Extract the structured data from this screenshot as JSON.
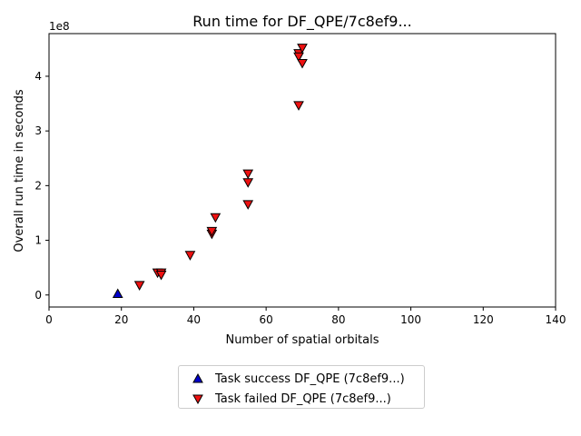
{
  "chart_data": {
    "type": "scatter",
    "title": "Run time for DF_QPE/7c8ef9...",
    "xlabel": "Number of spatial orbitals",
    "ylabel": "Overall run time in seconds",
    "offset_label": "1e8",
    "xlim": [
      0,
      140
    ],
    "ylim": [
      -0.22,
      4.78
    ],
    "y_scale_note": "values in units of 1e8 seconds",
    "xticks": [
      "0",
      "20",
      "40",
      "60",
      "80",
      "100",
      "120",
      "140"
    ],
    "xtick_values": [
      0,
      20,
      40,
      60,
      80,
      100,
      120,
      140
    ],
    "yticks": [
      "0",
      "1",
      "2",
      "3",
      "4"
    ],
    "ytick_values": [
      0,
      1,
      2,
      3,
      4
    ],
    "grid": false,
    "legend_placement": "below",
    "series": [
      {
        "name": "Task success DF_QPE (7c8ef9...)",
        "marker": "triangle-up",
        "color": "#0000cc",
        "points": [
          [
            19,
            0.02
          ]
        ]
      },
      {
        "name": "Task failed DF_QPE (7c8ef9...)",
        "marker": "triangle-down",
        "color": "#ee1111",
        "points": [
          [
            25,
            0.18
          ],
          [
            30,
            0.41
          ],
          [
            31,
            0.41
          ],
          [
            31,
            0.37
          ],
          [
            39,
            0.73
          ],
          [
            45,
            1.12
          ],
          [
            45,
            1.17
          ],
          [
            46,
            1.42
          ],
          [
            55,
            2.22
          ],
          [
            55,
            2.06
          ],
          [
            55,
            1.66
          ],
          [
            69,
            3.47
          ],
          [
            69,
            4.42
          ],
          [
            69,
            4.36
          ],
          [
            70,
            4.24
          ],
          [
            70,
            4.52
          ]
        ]
      }
    ]
  }
}
